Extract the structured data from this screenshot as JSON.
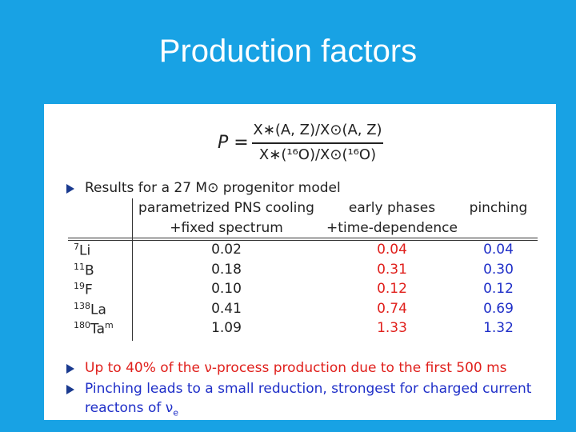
{
  "header": {
    "title": "Production factors"
  },
  "formula": {
    "lhs": "P =",
    "numerator": "X∗(A, Z)/X⊙(A, Z)",
    "denominator": "X∗(¹⁶O)/X⊙(¹⁶O)"
  },
  "bullets": [
    {
      "text": "Results for a 27 M⊙ progenitor model"
    },
    {
      "text": "Up to 40% of the ν-process production due to the first 500 ms"
    },
    {
      "text": "Pinching leads to a small reduction, strongest for charged current",
      "text2": "reactons of ν",
      "subscript": "e"
    }
  ],
  "table": {
    "columns": [
      {
        "line1": "parametrized PNS cooling",
        "line2": "+fixed spectrum"
      },
      {
        "line1": "early phases",
        "line2": "+time-dependence"
      },
      {
        "line1": "pinching"
      }
    ],
    "rows": [
      {
        "mass": "7",
        "symbol": "Li",
        "values": [
          "0.02",
          "0.04",
          "0.04"
        ]
      },
      {
        "mass": "11",
        "symbol": "B",
        "values": [
          "0.18",
          "0.31",
          "0.30"
        ]
      },
      {
        "mass": "19",
        "symbol": "F",
        "values": [
          "0.10",
          "0.12",
          "0.12"
        ]
      },
      {
        "mass": "138",
        "symbol": "La",
        "values": [
          "0.41",
          "0.74",
          "0.69"
        ]
      },
      {
        "mass": "180",
        "symbol": "Ta",
        "isomer": "m",
        "values": [
          "1.09",
          "1.33",
          "1.32"
        ]
      }
    ]
  }
}
